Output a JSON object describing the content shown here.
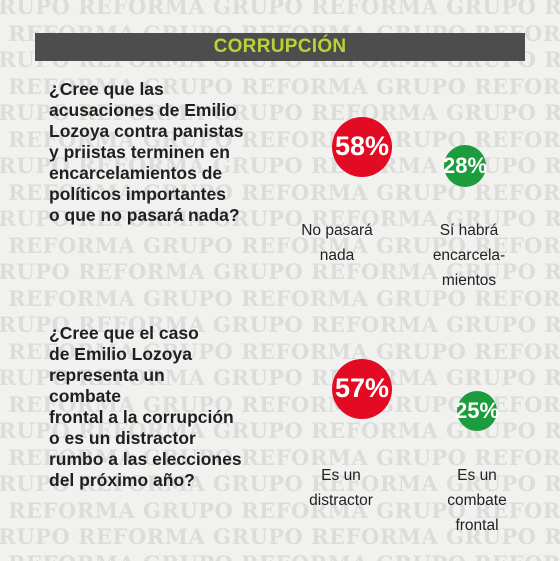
{
  "watermark_text": "GRUPO REFORMA",
  "header": {
    "title": "CORRUPCIÓN"
  },
  "colors": {
    "red": "#e30b23",
    "green": "#1c9c3c",
    "header_bg": "#4d4d4d",
    "header_text": "#b9d23a"
  },
  "questions": [
    {
      "text": "¿Cree que las\nacusaciones de Emilio\nLozoya contra panistas\ny priistas terminen en\nencarcelamientos de\npolíticos importantes\no que no pasará nada?"
    },
    {
      "text": "¿Cree que el caso\nde Emilio Lozoya\nrepresenta un\ncombate\nfrontal a la corrupción\no es un distractor\nrumbo a las  elecciones\ndel próximo año?"
    }
  ],
  "chart_data": [
    {
      "type": "bubble",
      "categories": [
        "No pasará nada",
        "Sí habrá encarcelamientos"
      ],
      "values": [
        58,
        28
      ],
      "unit": "%",
      "labels": [
        "No pasará\nnada",
        "Sí habrá\nencarcela-\nmientos"
      ],
      "value_labels": [
        "58%",
        "28%"
      ],
      "colors": [
        "#e30b23",
        "#1c9c3c"
      ]
    },
    {
      "type": "bubble",
      "categories": [
        "Es un distractor",
        "Es un combate frontal"
      ],
      "values": [
        57,
        25
      ],
      "unit": "%",
      "labels": [
        "Es un\ndistractor",
        "Es un\ncombate\nfrontal"
      ],
      "value_labels": [
        "57%",
        "25%"
      ],
      "colors": [
        "#e30b23",
        "#1c9c3c"
      ]
    }
  ]
}
